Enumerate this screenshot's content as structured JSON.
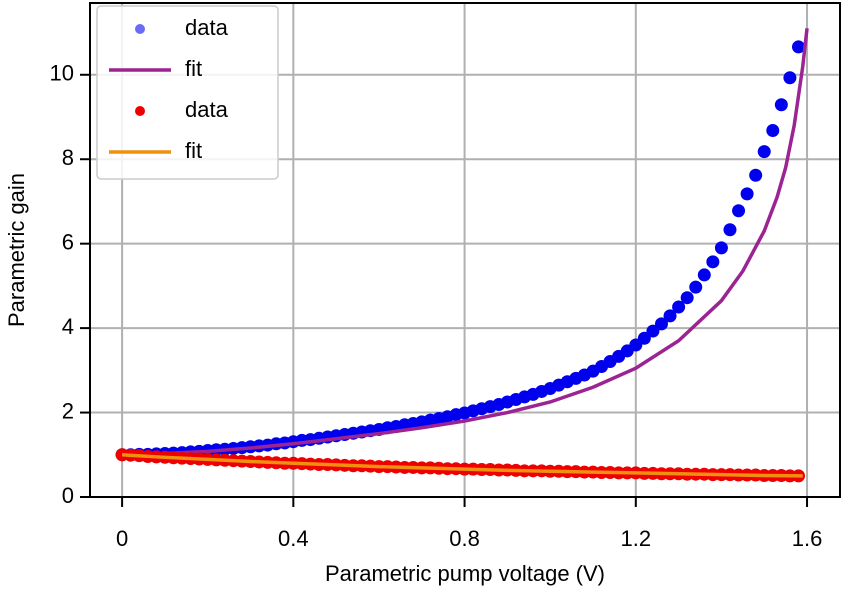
{
  "chart_data": {
    "type": "scatter",
    "xlabel": "Parametric pump voltage (V)",
    "ylabel": "Parametric gain",
    "xlim": [
      -0.075,
      1.677
    ],
    "ylim": [
      0,
      11.7
    ],
    "xticks": [
      0,
      0.4,
      0.8,
      1.2,
      1.6
    ],
    "yticks": [
      0,
      2,
      4,
      6,
      8,
      10
    ],
    "grid": true,
    "legend": "upper left",
    "series": [
      {
        "name": "data",
        "style": "marker",
        "color": "#0000ee",
        "legend_color": "#6b6bf5",
        "x": [
          0,
          0.02,
          0.04,
          0.06,
          0.08,
          0.1,
          0.12,
          0.14,
          0.16,
          0.18,
          0.2,
          0.22,
          0.24,
          0.26,
          0.28,
          0.3,
          0.32,
          0.34,
          0.36,
          0.38,
          0.4,
          0.42,
          0.44,
          0.46,
          0.48,
          0.5,
          0.52,
          0.54,
          0.56,
          0.58,
          0.6,
          0.62,
          0.64,
          0.66,
          0.68,
          0.7,
          0.72,
          0.74,
          0.76,
          0.78,
          0.8,
          0.82,
          0.84,
          0.86,
          0.88,
          0.9,
          0.92,
          0.94,
          0.96,
          0.98,
          1.0,
          1.02,
          1.04,
          1.06,
          1.08,
          1.1,
          1.12,
          1.14,
          1.16,
          1.18,
          1.2,
          1.22,
          1.24,
          1.26,
          1.28,
          1.3,
          1.32,
          1.34,
          1.36,
          1.38,
          1.4,
          1.42,
          1.44,
          1.46,
          1.48,
          1.5,
          1.52,
          1.54,
          1.56,
          1.58
        ],
        "values": [
          1.0,
          1.0,
          1.01,
          1.01,
          1.02,
          1.03,
          1.04,
          1.05,
          1.07,
          1.08,
          1.1,
          1.12,
          1.13,
          1.15,
          1.17,
          1.19,
          1.21,
          1.23,
          1.26,
          1.28,
          1.31,
          1.34,
          1.36,
          1.39,
          1.42,
          1.45,
          1.48,
          1.51,
          1.54,
          1.57,
          1.6,
          1.64,
          1.67,
          1.71,
          1.74,
          1.78,
          1.82,
          1.86,
          1.9,
          1.95,
          1.99,
          2.04,
          2.09,
          2.14,
          2.19,
          2.25,
          2.31,
          2.37,
          2.43,
          2.5,
          2.57,
          2.65,
          2.73,
          2.81,
          2.89,
          2.98,
          3.09,
          3.21,
          3.33,
          3.46,
          3.6,
          3.76,
          3.93,
          4.1,
          4.29,
          4.5,
          4.72,
          4.97,
          5.26,
          5.57,
          5.9,
          6.33,
          6.78,
          7.18,
          7.62,
          8.18,
          8.68,
          9.29,
          9.93,
          10.66
        ]
      },
      {
        "name": "fit",
        "style": "line",
        "color": "#9b2393",
        "x": [
          0,
          0.1,
          0.2,
          0.3,
          0.4,
          0.5,
          0.6,
          0.7,
          0.8,
          0.9,
          1.0,
          1.1,
          1.2,
          1.3,
          1.4,
          1.45,
          1.5,
          1.53,
          1.55,
          1.57,
          1.59,
          1.6
        ],
        "values": [
          1.0,
          1.03,
          1.08,
          1.16,
          1.26,
          1.38,
          1.5,
          1.64,
          1.8,
          2.0,
          2.25,
          2.6,
          3.05,
          3.7,
          4.65,
          5.35,
          6.3,
          7.1,
          7.8,
          8.8,
          10.2,
          11.1
        ]
      },
      {
        "name": "data",
        "style": "marker",
        "color": "#ee0000",
        "legend_color": "#ee0000",
        "x": [
          0,
          0.02,
          0.04,
          0.06,
          0.08,
          0.1,
          0.12,
          0.14,
          0.16,
          0.18,
          0.2,
          0.22,
          0.24,
          0.26,
          0.28,
          0.3,
          0.32,
          0.34,
          0.36,
          0.38,
          0.4,
          0.42,
          0.44,
          0.46,
          0.48,
          0.5,
          0.52,
          0.54,
          0.56,
          0.58,
          0.6,
          0.62,
          0.64,
          0.66,
          0.68,
          0.7,
          0.72,
          0.74,
          0.76,
          0.78,
          0.8,
          0.82,
          0.84,
          0.86,
          0.88,
          0.9,
          0.92,
          0.94,
          0.96,
          0.98,
          1.0,
          1.02,
          1.04,
          1.06,
          1.08,
          1.1,
          1.12,
          1.14,
          1.16,
          1.18,
          1.2,
          1.22,
          1.24,
          1.26,
          1.28,
          1.3,
          1.32,
          1.34,
          1.36,
          1.38,
          1.4,
          1.42,
          1.44,
          1.46,
          1.48,
          1.5,
          1.52,
          1.54,
          1.56,
          1.58
        ],
        "values": [
          1.0,
          0.99,
          0.98,
          0.96,
          0.95,
          0.94,
          0.93,
          0.92,
          0.91,
          0.9,
          0.89,
          0.88,
          0.87,
          0.86,
          0.85,
          0.84,
          0.83,
          0.82,
          0.81,
          0.8,
          0.8,
          0.79,
          0.78,
          0.77,
          0.77,
          0.76,
          0.75,
          0.74,
          0.74,
          0.73,
          0.72,
          0.72,
          0.71,
          0.7,
          0.7,
          0.69,
          0.69,
          0.68,
          0.67,
          0.67,
          0.66,
          0.66,
          0.65,
          0.65,
          0.64,
          0.64,
          0.63,
          0.62,
          0.62,
          0.62,
          0.61,
          0.61,
          0.6,
          0.6,
          0.59,
          0.59,
          0.58,
          0.58,
          0.57,
          0.57,
          0.57,
          0.56,
          0.56,
          0.55,
          0.55,
          0.55,
          0.54,
          0.54,
          0.54,
          0.53,
          0.53,
          0.53,
          0.52,
          0.52,
          0.52,
          0.51,
          0.51,
          0.51,
          0.5,
          0.5
        ]
      },
      {
        "name": "fit",
        "style": "line",
        "color": "#f0900e",
        "x": [
          0,
          0.1,
          0.2,
          0.3,
          0.4,
          0.5,
          0.6,
          0.7,
          0.8,
          0.9,
          1.0,
          1.1,
          1.2,
          1.3,
          1.4,
          1.5,
          1.59
        ],
        "values": [
          1.0,
          0.94,
          0.89,
          0.84,
          0.8,
          0.76,
          0.72,
          0.69,
          0.66,
          0.63,
          0.61,
          0.59,
          0.57,
          0.55,
          0.53,
          0.51,
          0.5
        ]
      }
    ]
  }
}
